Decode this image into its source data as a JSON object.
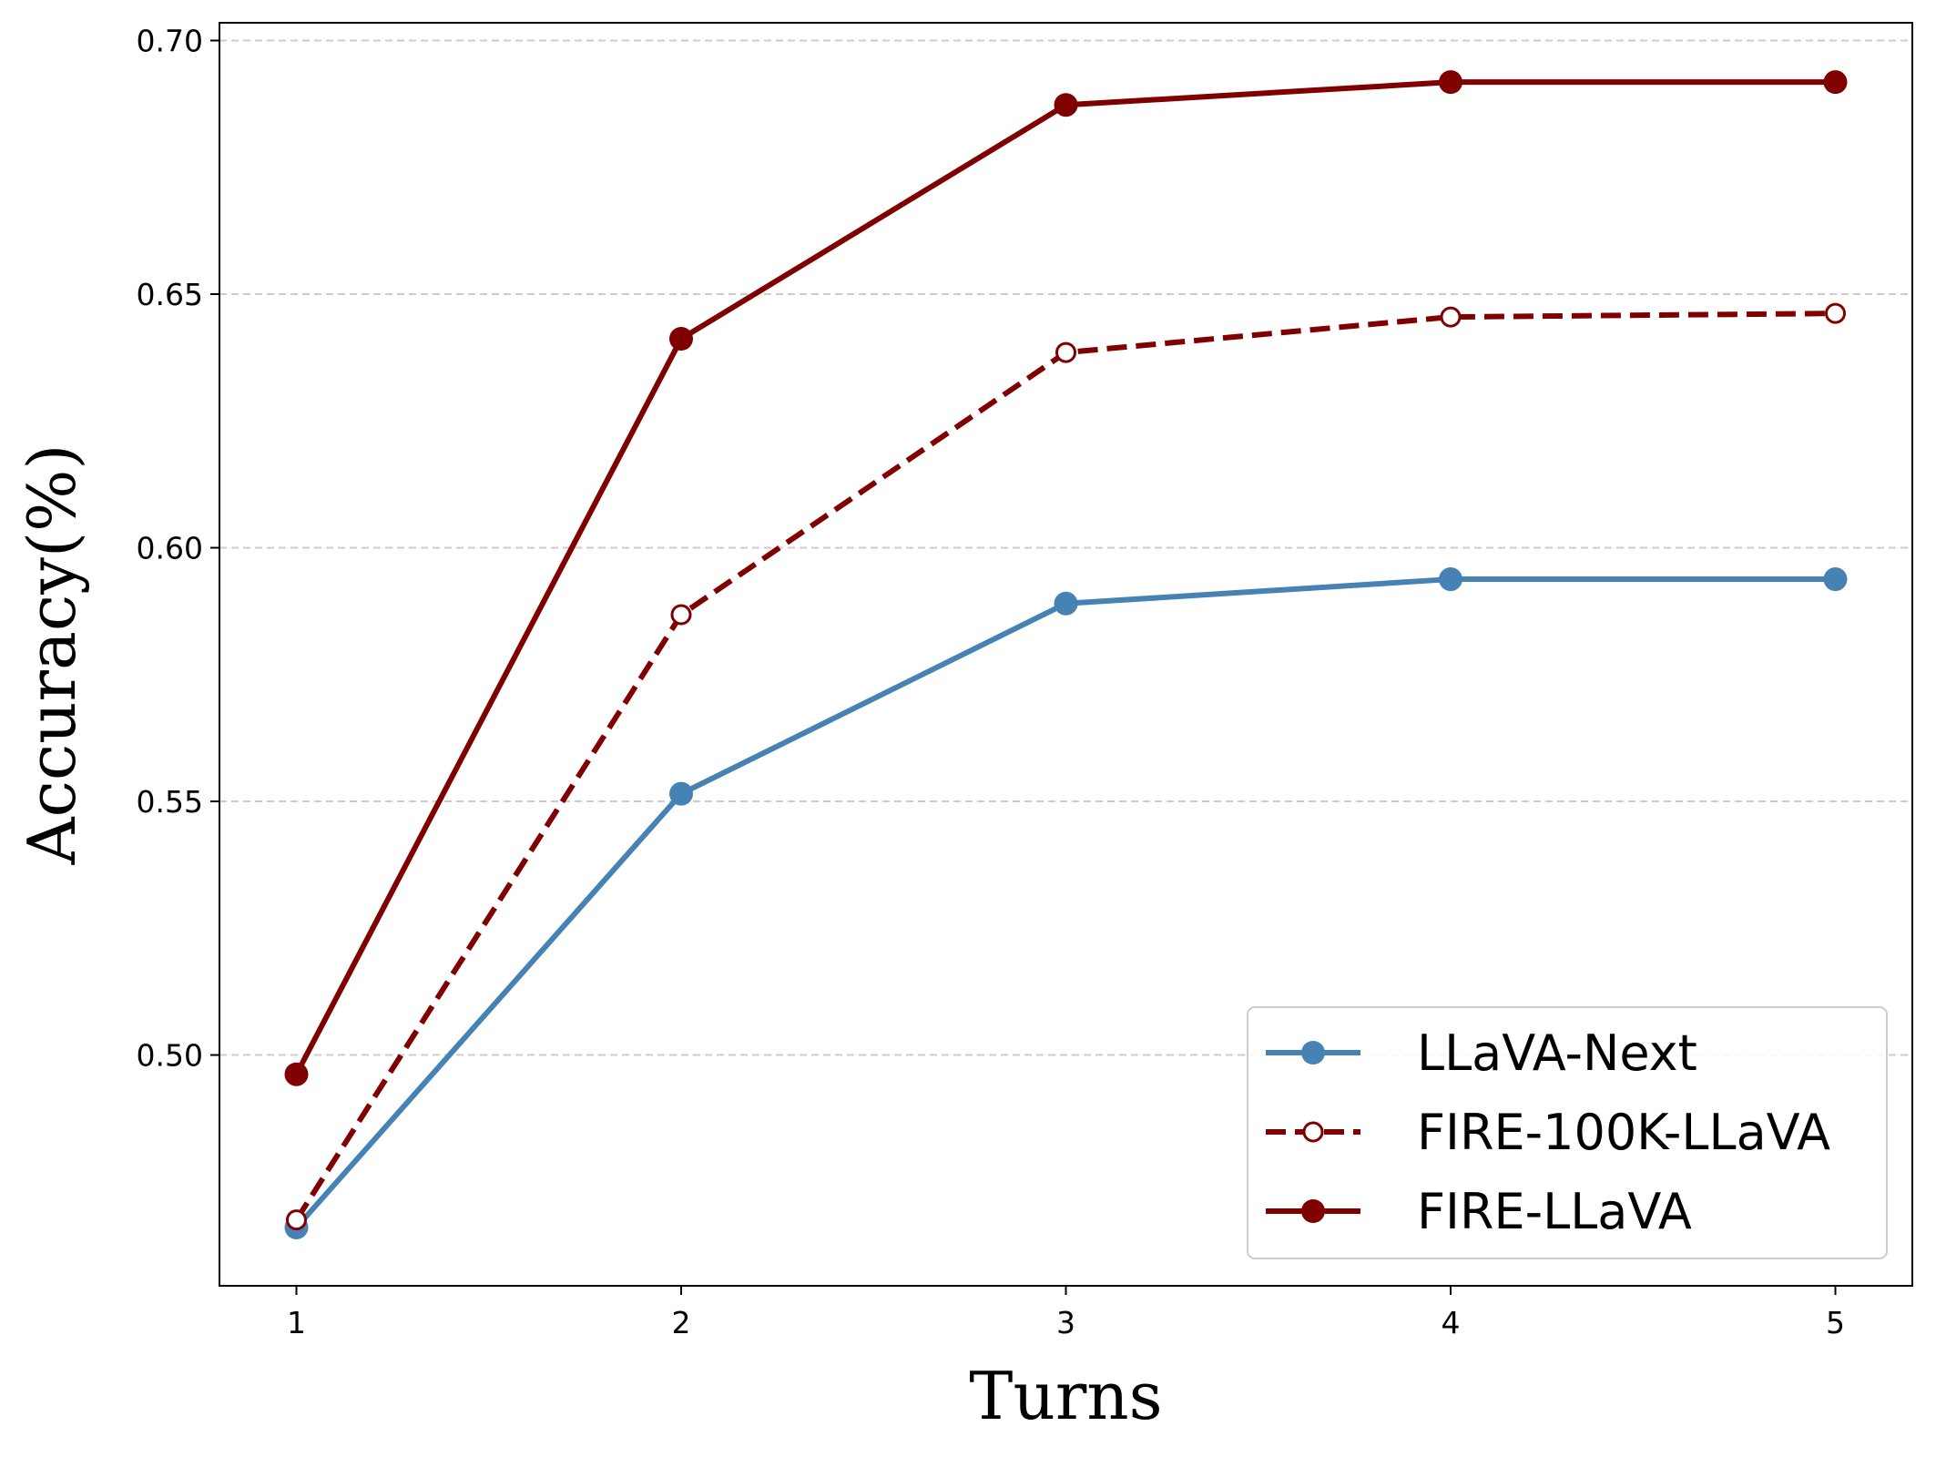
{
  "chart_data": {
    "type": "line",
    "title": "",
    "xlabel": "Turns",
    "ylabel": "Accuracy(%)",
    "x": [
      1,
      2,
      3,
      4,
      5
    ],
    "xticks": [
      "1",
      "2",
      "3",
      "4",
      "5"
    ],
    "xlim": [
      0.8,
      5.2
    ],
    "ylim": [
      0.4545,
      0.7035
    ],
    "yticks": [
      "0.50",
      "0.55",
      "0.60",
      "0.65",
      "0.70"
    ],
    "ytick_values": [
      0.5,
      0.55,
      0.6,
      0.65,
      0.7
    ],
    "grid": "y-dashed",
    "legend_position": "bottom-right",
    "series": [
      {
        "name": "LLaVA-Next",
        "values": [
          0.466,
          0.5515,
          0.589,
          0.5938,
          0.5938
        ],
        "color": "#4682b4",
        "line_style": "solid",
        "marker": "filled-circle"
      },
      {
        "name": "FIRE-100K-LLaVA",
        "values": [
          0.4675,
          0.5868,
          0.6385,
          0.6455,
          0.6462
        ],
        "color": "#800000",
        "line_style": "dashed",
        "marker": "hollow-circle"
      },
      {
        "name": "FIRE-LLaVA",
        "values": [
          0.4962,
          0.6412,
          0.6873,
          0.6918,
          0.6918
        ],
        "color": "#800000",
        "line_style": "solid",
        "marker": "filled-circle"
      }
    ]
  }
}
